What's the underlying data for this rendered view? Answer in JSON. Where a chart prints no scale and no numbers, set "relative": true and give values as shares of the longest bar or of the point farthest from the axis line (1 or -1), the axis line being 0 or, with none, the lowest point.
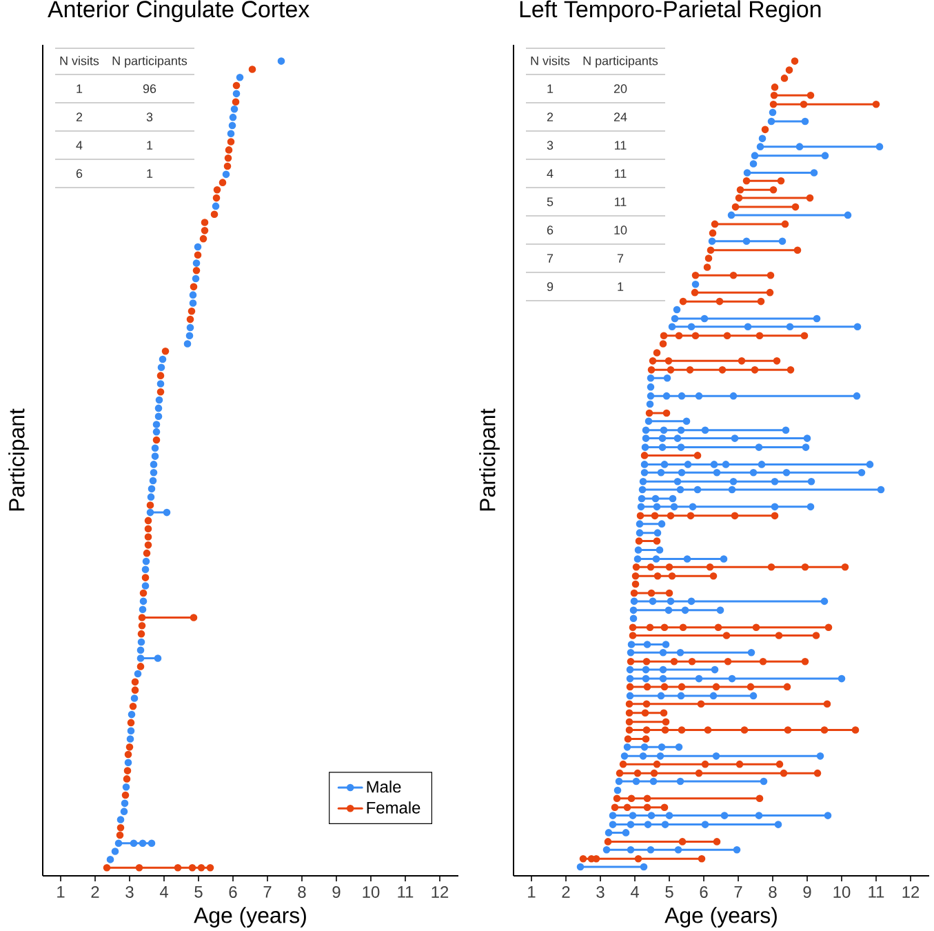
{
  "chart_data": [
    {
      "type": "line",
      "title": "Anterior Cingulate Cortex",
      "xlabel": "Age (years)",
      "ylabel": "Participant",
      "xlim": [
        0.48,
        12.54
      ],
      "xticks": [
        1,
        2,
        3,
        4,
        5,
        6,
        7,
        8,
        9,
        10,
        11,
        12
      ],
      "relative": true,
      "tick_labels": "x",
      "marker": "circle",
      "line_style": "solid",
      "legend": "bottom right",
      "annotations": [
        "N visits",
        "N participants",
        "1",
        "96",
        "2",
        "3",
        "4",
        "1",
        "6",
        "1"
      ],
      "series": [
        {
          "name": "Male",
          "color": "#3a8df5",
          "x": [
            7.4,
            null,
            6.2,
            null,
            6.1,
            null,
            6.04,
            null,
            6.0,
            null,
            5.98,
            null,
            5.94,
            null,
            5.8,
            null,
            5.5,
            null,
            4.98,
            null,
            4.94,
            null,
            4.92,
            null,
            4.84,
            null,
            4.84,
            null,
            4.76,
            null,
            4.74,
            null,
            4.68,
            null,
            3.96,
            null,
            3.92,
            null,
            3.9,
            null,
            3.86,
            null,
            3.84,
            null,
            3.84,
            null,
            3.78,
            null,
            3.78,
            null,
            3.74,
            null,
            3.74,
            null,
            3.7,
            null,
            3.7,
            null,
            3.68,
            null,
            3.64,
            null,
            3.62,
            null,
            3.6,
            4.08,
            null,
            3.48,
            null,
            3.46,
            null,
            3.46,
            null,
            3.4,
            null,
            3.38,
            null,
            3.34,
            null,
            3.32,
            null,
            3.32,
            3.82,
            null,
            3.24,
            null,
            3.14,
            null,
            3.06,
            null,
            3.04,
            null,
            3.02,
            null,
            2.96,
            null,
            2.9,
            null,
            2.86,
            null,
            2.84,
            null,
            2.74,
            null,
            2.68,
            3.12,
            3.38,
            3.64,
            null,
            2.58,
            null,
            2.44
          ],
          "values": [
            1,
            null,
            0.98,
            null,
            0.96,
            null,
            0.941,
            null,
            0.931,
            null,
            0.921,
            null,
            0.911,
            null,
            0.861,
            null,
            0.822,
            null,
            0.772,
            null,
            0.752,
            null,
            0.733,
            null,
            0.713,
            null,
            0.703,
            null,
            0.673,
            null,
            0.663,
            null,
            0.653,
            null,
            0.634,
            null,
            0.624,
            null,
            0.604,
            null,
            0.584,
            null,
            0.574,
            null,
            0.564,
            null,
            0.554,
            null,
            0.545,
            null,
            0.525,
            null,
            0.515,
            null,
            0.505,
            null,
            0.495,
            null,
            0.485,
            null,
            0.475,
            null,
            0.465,
            null,
            0.446,
            0.446,
            null,
            0.386,
            null,
            0.376,
            null,
            0.356,
            null,
            0.337,
            null,
            0.327,
            null,
            0.287,
            null,
            0.277,
            null,
            0.267,
            0.267,
            null,
            0.248,
            null,
            0.218,
            null,
            0.198,
            null,
            0.178,
            null,
            0.168,
            null,
            0.139,
            null,
            0.109,
            null,
            0.089,
            null,
            0.079,
            null,
            0.069,
            null,
            0.04,
            0.04,
            0.04,
            0.04,
            null,
            0.03,
            null,
            0.02
          ]
        },
        {
          "name": "Female",
          "color": "#e8440f",
          "x": [
            6.56,
            null,
            6.1,
            null,
            6.08,
            null,
            5.94,
            null,
            5.88,
            null,
            5.86,
            null,
            5.84,
            null,
            5.7,
            null,
            5.54,
            null,
            5.52,
            null,
            5.46,
            null,
            5.18,
            null,
            5.18,
            null,
            5.14,
            null,
            4.98,
            null,
            4.94,
            null,
            4.86,
            null,
            4.8,
            null,
            4.76,
            null,
            4.04,
            null,
            3.9,
            null,
            3.9,
            null,
            3.78,
            null,
            3.6,
            null,
            3.54,
            null,
            3.54,
            null,
            3.54,
            null,
            3.54,
            null,
            3.5,
            null,
            3.46,
            null,
            3.4,
            null,
            3.36,
            4.86,
            null,
            3.36,
            null,
            3.34,
            null,
            3.32,
            null,
            3.16,
            null,
            3.16,
            null,
            3.1,
            null,
            3.04,
            null,
            3.0,
            null,
            2.96,
            null,
            2.94,
            null,
            2.92,
            null,
            2.88,
            null,
            2.74,
            null,
            2.72,
            null,
            2.34,
            3.28,
            4.4,
            4.82,
            5.08,
            5.34
          ],
          "values": [
            0.99,
            null,
            0.97,
            null,
            0.95,
            null,
            0.901,
            null,
            0.891,
            null,
            0.881,
            null,
            0.871,
            null,
            0.851,
            null,
            0.842,
            null,
            0.832,
            null,
            0.812,
            null,
            0.802,
            null,
            0.792,
            null,
            0.782,
            null,
            0.762,
            null,
            0.743,
            null,
            0.723,
            null,
            0.693,
            null,
            0.683,
            null,
            0.644,
            null,
            0.614,
            null,
            0.594,
            null,
            0.535,
            null,
            0.455,
            null,
            0.436,
            null,
            0.426,
            null,
            0.416,
            null,
            0.406,
            null,
            0.396,
            null,
            0.366,
            null,
            0.347,
            null,
            0.317,
            0.317,
            null,
            0.307,
            null,
            0.297,
            null,
            0.257,
            null,
            0.238,
            null,
            0.228,
            null,
            0.208,
            null,
            0.188,
            null,
            0.158,
            null,
            0.149,
            null,
            0.129,
            null,
            0.119,
            null,
            0.099,
            null,
            0.059,
            null,
            0.05,
            null,
            0.01,
            0.01,
            0.01,
            0.01,
            0.01,
            0.01
          ]
        }
      ]
    },
    {
      "type": "line",
      "title": "Left Temporo-Parietal Region",
      "xlabel": "Age (years)",
      "ylabel": "Participant",
      "xlim": [
        0.48,
        12.54
      ],
      "xticks": [
        1,
        2,
        3,
        4,
        5,
        6,
        7,
        8,
        9,
        10,
        11,
        12
      ],
      "relative": true,
      "tick_labels": "x",
      "marker": "circle",
      "line_style": "solid",
      "annotations": [
        "N visits",
        "N participants",
        "1",
        "20",
        "2",
        "24",
        "3",
        "11",
        "4",
        "11",
        "5",
        "11",
        "6",
        "10",
        "7",
        "7",
        "9",
        "1"
      ],
      "series": [
        {
          "color": "#3a8df5",
          "x": [
            8.0,
            null,
            7.96,
            8.94,
            null,
            7.7,
            null,
            7.64,
            8.78,
            11.1,
            null,
            7.48,
            9.52,
            null,
            7.44,
            null,
            7.26,
            9.2,
            null,
            6.8,
            10.18,
            null,
            6.24,
            7.24,
            8.28,
            null,
            5.76,
            null,
            5.22,
            null,
            5.16,
            6.02,
            9.28,
            null,
            5.08,
            5.64,
            7.28,
            8.5,
            10.46,
            null,
            4.46,
            4.94,
            null,
            4.46,
            null,
            4.46,
            4.92,
            5.36,
            5.86,
            6.86,
            10.44,
            null,
            4.44,
            null,
            4.4,
            5.5,
            null,
            4.32,
            4.84,
            5.34,
            6.04,
            8.38,
            null,
            4.32,
            4.8,
            5.24,
            6.9,
            9.0,
            null,
            4.3,
            4.8,
            5.34,
            7.6,
            8.96,
            null,
            4.28,
            4.86,
            5.54,
            6.3,
            6.64,
            7.68,
            10.82,
            null,
            4.28,
            4.76,
            5.36,
            6.38,
            7.44,
            8.4,
            10.58,
            null,
            4.24,
            5.24,
            6.86,
            8.06,
            9.12,
            null,
            4.22,
            5.32,
            5.82,
            6.82,
            11.14,
            null,
            4.2,
            4.6,
            5.1,
            null,
            4.18,
            4.64,
            5.14,
            5.68,
            8.06,
            9.1,
            null,
            4.14,
            4.78,
            null,
            4.14,
            4.66,
            null,
            4.1,
            4.72,
            null,
            4.08,
            4.62,
            5.52,
            6.58,
            null,
            3.98,
            4.52,
            5.04,
            5.64,
            9.5,
            null,
            3.96,
            4.98,
            5.46,
            6.48,
            null,
            3.96,
            null,
            3.9,
            4.36,
            4.9,
            null,
            3.88,
            4.82,
            5.32,
            7.38,
            null,
            3.86,
            4.32,
            4.82,
            6.32,
            null,
            3.86,
            4.32,
            4.82,
            5.86,
            6.82,
            10.0,
            null,
            3.86,
            4.76,
            5.34,
            6.28,
            7.44,
            null,
            3.78,
            4.28,
            4.78,
            5.28,
            null,
            3.7,
            4.24,
            4.74,
            6.36,
            9.38,
            null,
            3.54,
            4.04,
            4.54,
            5.32,
            7.74,
            null,
            3.5,
            null,
            3.36,
            3.94,
            4.48,
            5.0,
            6.6,
            7.6,
            9.6,
            null,
            3.36,
            3.88,
            4.38,
            4.88,
            6.04,
            8.16,
            null,
            3.24,
            3.74,
            null,
            3.18,
            3.88,
            4.46,
            5.26,
            6.96,
            null,
            2.42,
            4.26
          ],
          "values": [
            0.937,
            null,
            0.926,
            0.926,
            null,
            0.905,
            null,
            0.895,
            0.895,
            0.895,
            null,
            0.884,
            0.884,
            null,
            0.874,
            null,
            0.863,
            0.863,
            null,
            0.811,
            0.811,
            null,
            0.779,
            0.779,
            0.779,
            null,
            0.726,
            null,
            0.695,
            null,
            0.684,
            0.684,
            0.684,
            null,
            0.674,
            0.674,
            0.674,
            0.674,
            0.674,
            null,
            0.611,
            0.611,
            null,
            0.6,
            null,
            0.589,
            0.589,
            0.589,
            0.589,
            0.589,
            0.589,
            null,
            0.579,
            null,
            0.558,
            0.558,
            null,
            0.547,
            0.547,
            0.547,
            0.547,
            0.547,
            null,
            0.537,
            0.537,
            0.537,
            0.537,
            0.537,
            null,
            0.526,
            0.526,
            0.526,
            0.526,
            0.526,
            null,
            0.505,
            0.505,
            0.505,
            0.505,
            0.505,
            0.505,
            0.505,
            null,
            0.495,
            0.495,
            0.495,
            0.495,
            0.495,
            0.495,
            0.495,
            null,
            0.484,
            0.484,
            0.484,
            0.484,
            0.484,
            null,
            0.474,
            0.474,
            0.474,
            0.474,
            0.474,
            null,
            0.463,
            0.463,
            0.463,
            null,
            0.453,
            0.453,
            0.453,
            0.453,
            0.453,
            0.453,
            null,
            0.432,
            0.432,
            null,
            0.421,
            0.421,
            null,
            0.4,
            0.4,
            null,
            0.389,
            0.389,
            0.389,
            0.389,
            null,
            0.337,
            0.337,
            0.337,
            0.337,
            0.337,
            null,
            0.326,
            0.326,
            0.326,
            0.326,
            null,
            0.316,
            null,
            0.284,
            0.284,
            0.284,
            null,
            0.274,
            0.274,
            0.274,
            0.274,
            null,
            0.253,
            0.253,
            0.253,
            0.253,
            null,
            0.242,
            0.242,
            0.242,
            0.242,
            0.242,
            0.242,
            null,
            0.221,
            0.221,
            0.221,
            0.221,
            0.221,
            null,
            0.158,
            0.158,
            0.158,
            0.158,
            null,
            0.147,
            0.147,
            0.147,
            0.147,
            0.147,
            null,
            0.116,
            0.116,
            0.116,
            0.116,
            0.116,
            null,
            0.105,
            null,
            0.074,
            0.074,
            0.074,
            0.074,
            0.074,
            0.074,
            0.074,
            null,
            0.063,
            0.063,
            0.063,
            0.063,
            0.063,
            0.063,
            null,
            0.053,
            0.053,
            null,
            0.032,
            0.032,
            0.032,
            0.032,
            0.032,
            null,
            0.011,
            0.011
          ]
        },
        {
          "color": "#e8440f",
          "x": [
            8.64,
            null,
            8.48,
            null,
            8.34,
            null,
            8.06,
            null,
            8.04,
            9.1,
            null,
            8.02,
            8.9,
            11.0,
            null,
            7.78,
            null,
            7.24,
            8.24,
            null,
            7.06,
            8.02,
            null,
            7.02,
            9.08,
            null,
            6.92,
            8.66,
            null,
            6.32,
            8.36,
            null,
            6.26,
            null,
            6.2,
            8.72,
            null,
            6.14,
            null,
            6.1,
            null,
            5.76,
            6.86,
            7.94,
            null,
            5.74,
            7.92,
            null,
            5.4,
            6.46,
            7.66,
            null,
            4.84,
            5.28,
            5.76,
            6.68,
            7.62,
            8.92,
            null,
            4.82,
            null,
            4.64,
            null,
            4.52,
            4.98,
            7.1,
            8.12,
            null,
            4.48,
            5.04,
            5.6,
            6.54,
            7.48,
            8.52,
            null,
            4.42,
            4.92,
            null,
            4.28,
            5.82,
            null,
            4.16,
            4.58,
            5.04,
            5.62,
            6.9,
            8.06,
            null,
            4.12,
            4.64,
            null,
            4.04,
            4.46,
            5.0,
            6.18,
            7.96,
            8.94,
            10.1,
            null,
            4.02,
            4.66,
            5.08,
            6.28,
            null,
            4.02,
            null,
            3.98,
            4.48,
            5.0,
            null,
            3.94,
            4.44,
            4.86,
            5.4,
            6.42,
            7.52,
            9.62,
            null,
            3.94,
            6.66,
            8.18,
            9.26,
            null,
            3.88,
            4.34,
            5.14,
            5.66,
            6.7,
            7.72,
            8.94,
            null,
            3.86,
            4.36,
            4.86,
            5.36,
            6.36,
            7.36,
            8.42,
            null,
            3.84,
            4.34,
            5.92,
            9.58,
            null,
            3.84,
            4.3,
            4.84,
            null,
            3.84,
            4.9,
            null,
            3.84,
            4.34,
            4.88,
            5.36,
            6.12,
            7.18,
            8.44,
            9.5,
            10.4,
            null,
            3.8,
            4.32,
            null,
            3.66,
            4.64,
            6.04,
            7.04,
            8.2,
            null,
            3.56,
            4.08,
            4.56,
            5.86,
            8.32,
            9.3,
            null,
            3.48,
            3.9,
            4.36,
            7.62,
            null,
            3.42,
            3.78,
            4.36,
            4.86,
            null,
            3.22,
            5.38,
            6.38,
            null,
            2.5,
            2.74,
            2.88,
            4.1,
            5.94
          ],
          "values": [
            1,
            null,
            0.989,
            null,
            0.979,
            null,
            0.968,
            null,
            0.958,
            0.958,
            null,
            0.947,
            0.947,
            0.947,
            null,
            0.916,
            null,
            0.853,
            0.853,
            null,
            0.842,
            0.842,
            null,
            0.832,
            0.832,
            null,
            0.821,
            0.821,
            null,
            0.8,
            0.8,
            null,
            0.789,
            null,
            0.768,
            0.768,
            null,
            0.758,
            null,
            0.747,
            null,
            0.737,
            0.737,
            0.737,
            null,
            0.716,
            0.716,
            null,
            0.705,
            0.705,
            0.705,
            null,
            0.663,
            0.663,
            0.663,
            0.663,
            0.663,
            0.663,
            null,
            0.653,
            null,
            0.642,
            null,
            0.632,
            0.632,
            0.632,
            0.632,
            null,
            0.621,
            0.621,
            0.621,
            0.621,
            0.621,
            0.621,
            null,
            0.568,
            0.568,
            null,
            0.516,
            0.516,
            null,
            0.442,
            0.442,
            0.442,
            0.442,
            0.442,
            0.442,
            null,
            0.411,
            0.411,
            null,
            0.379,
            0.379,
            0.379,
            0.379,
            0.379,
            0.379,
            0.379,
            null,
            0.368,
            0.368,
            0.368,
            0.368,
            null,
            0.358,
            null,
            0.347,
            0.347,
            0.347,
            null,
            0.305,
            0.305,
            0.305,
            0.305,
            0.305,
            0.305,
            0.305,
            null,
            0.295,
            0.295,
            0.295,
            0.295,
            null,
            0.263,
            0.263,
            0.263,
            0.263,
            0.263,
            0.263,
            0.263,
            null,
            0.232,
            0.232,
            0.232,
            0.232,
            0.232,
            0.232,
            0.232,
            null,
            0.211,
            0.211,
            0.211,
            0.211,
            null,
            0.2,
            0.2,
            0.2,
            null,
            0.189,
            0.189,
            null,
            0.179,
            0.179,
            0.179,
            0.179,
            0.179,
            0.179,
            0.179,
            0.179,
            0.179,
            null,
            0.168,
            0.168,
            null,
            0.137,
            0.137,
            0.137,
            0.137,
            0.137,
            null,
            0.126,
            0.126,
            0.126,
            0.126,
            0.126,
            0.126,
            null,
            0.095,
            0.095,
            0.095,
            0.095,
            null,
            0.084,
            0.084,
            0.084,
            0.084,
            null,
            0.042,
            0.042,
            0.042,
            null,
            0.021,
            0.021,
            0.021,
            0.021,
            0.021
          ]
        }
      ]
    }
  ]
}
